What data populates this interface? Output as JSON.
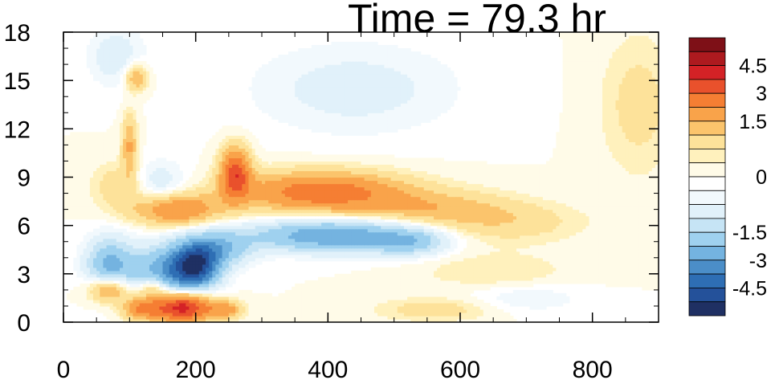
{
  "chart_data": {
    "type": "heatmap",
    "title": "Time = 79.3 hr",
    "xlabel": "",
    "ylabel": "",
    "xlim": [
      0,
      900
    ],
    "ylim": [
      0,
      18
    ],
    "x_ticks": [
      0,
      200,
      400,
      600,
      800
    ],
    "x_tick_labels": [
      "0",
      "200",
      "400",
      "600",
      "800"
    ],
    "y_ticks": [
      0,
      3,
      6,
      9,
      12,
      15,
      18
    ],
    "y_tick_labels": [
      "0",
      "3",
      "6",
      "9",
      "12",
      "15",
      "18"
    ],
    "x_minor_step": 50,
    "y_minor_step": 1,
    "colorbar": {
      "levels": [
        -5.25,
        -4.5,
        -3.75,
        -3.0,
        -2.25,
        -1.5,
        -1.0,
        -0.5,
        -0.25,
        0.0,
        0.25,
        0.5,
        1.0,
        1.5,
        2.25,
        3.0,
        3.75,
        4.5,
        5.25
      ],
      "tick_values": [
        4.5,
        3,
        1.5,
        0,
        -1.5,
        -3,
        -4.5
      ],
      "tick_labels": [
        "4.5",
        "3",
        "1.5",
        "0",
        "-1.5",
        "-3",
        "-4.5"
      ],
      "colors": [
        "#1f3063",
        "#24519a",
        "#2e6eb4",
        "#4b8ec8",
        "#74b3e0",
        "#9fd1ef",
        "#c6e4f5",
        "#e1f1fa",
        "#f2f9fd",
        "#ffffff",
        "#fffbe8",
        "#fff1bd",
        "#fde29a",
        "#fbc46c",
        "#f9a34a",
        "#f57e33",
        "#e9512c",
        "#d42226",
        "#ad1a1f",
        "#7e1017"
      ]
    },
    "features": [
      {
        "x": 70,
        "y": 2.1,
        "sx": 22,
        "sy": 0.6,
        "value": 2.6
      },
      {
        "x": 135,
        "y": 2.2,
        "sx": 18,
        "sy": 0.5,
        "value": 2.0
      },
      {
        "x": 180,
        "y": 1.0,
        "sx": 30,
        "sy": 0.7,
        "value": 4.5
      },
      {
        "x": 120,
        "y": 0.9,
        "sx": 22,
        "sy": 0.5,
        "value": 2.5
      },
      {
        "x": 245,
        "y": 0.8,
        "sx": 18,
        "sy": 0.4,
        "value": 1.8
      },
      {
        "x": 200,
        "y": 3.5,
        "sx": 25,
        "sy": 1.0,
        "value": -4.6
      },
      {
        "x": 150,
        "y": 3.0,
        "sx": 35,
        "sy": 1.2,
        "value": -2.7
      },
      {
        "x": 70,
        "y": 3.5,
        "sx": 25,
        "sy": 1.2,
        "value": -2.5
      },
      {
        "x": 235,
        "y": 4.6,
        "sx": 35,
        "sy": 0.8,
        "value": -2.0
      },
      {
        "x": 405,
        "y": 5.4,
        "sx": 85,
        "sy": 0.7,
        "value": -3.0
      },
      {
        "x": 525,
        "y": 5.0,
        "sx": 40,
        "sy": 0.6,
        "value": -1.6
      },
      {
        "x": 170,
        "y": 7.0,
        "sx": 45,
        "sy": 0.7,
        "value": 2.3
      },
      {
        "x": 260,
        "y": 9.3,
        "sx": 16,
        "sy": 1.1,
        "value": 3.3
      },
      {
        "x": 390,
        "y": 8.1,
        "sx": 90,
        "sy": 0.9,
        "value": 2.8
      },
      {
        "x": 560,
        "y": 7.1,
        "sx": 80,
        "sy": 0.8,
        "value": 1.1
      },
      {
        "x": 670,
        "y": 6.2,
        "sx": 80,
        "sy": 0.9,
        "value": 0.8
      },
      {
        "x": 870,
        "y": 13.5,
        "sx": 40,
        "sy": 3.0,
        "value": 0.7
      },
      {
        "x": 110,
        "y": 15.2,
        "sx": 12,
        "sy": 0.6,
        "value": 1.7
      },
      {
        "x": 100,
        "y": 11.0,
        "sx": 8,
        "sy": 1.3,
        "value": 1.6
      },
      {
        "x": 440,
        "y": 14.5,
        "sx": 110,
        "sy": 2.0,
        "value": -0.7
      },
      {
        "x": 90,
        "y": 8.5,
        "sx": 30,
        "sy": 1.0,
        "value": 1.0
      },
      {
        "x": 140,
        "y": 8.6,
        "sx": 30,
        "sy": 1.0,
        "value": -1.0
      },
      {
        "x": 80,
        "y": 16.5,
        "sx": 30,
        "sy": 1.3,
        "value": -0.8
      },
      {
        "x": 560,
        "y": 0.8,
        "sx": 60,
        "sy": 0.5,
        "value": 0.8
      },
      {
        "x": 650,
        "y": 3.2,
        "sx": 80,
        "sy": 0.8,
        "value": 0.5
      },
      {
        "x": 700,
        "y": 1.5,
        "sx": 60,
        "sy": 0.6,
        "value": -0.5
      }
    ]
  }
}
